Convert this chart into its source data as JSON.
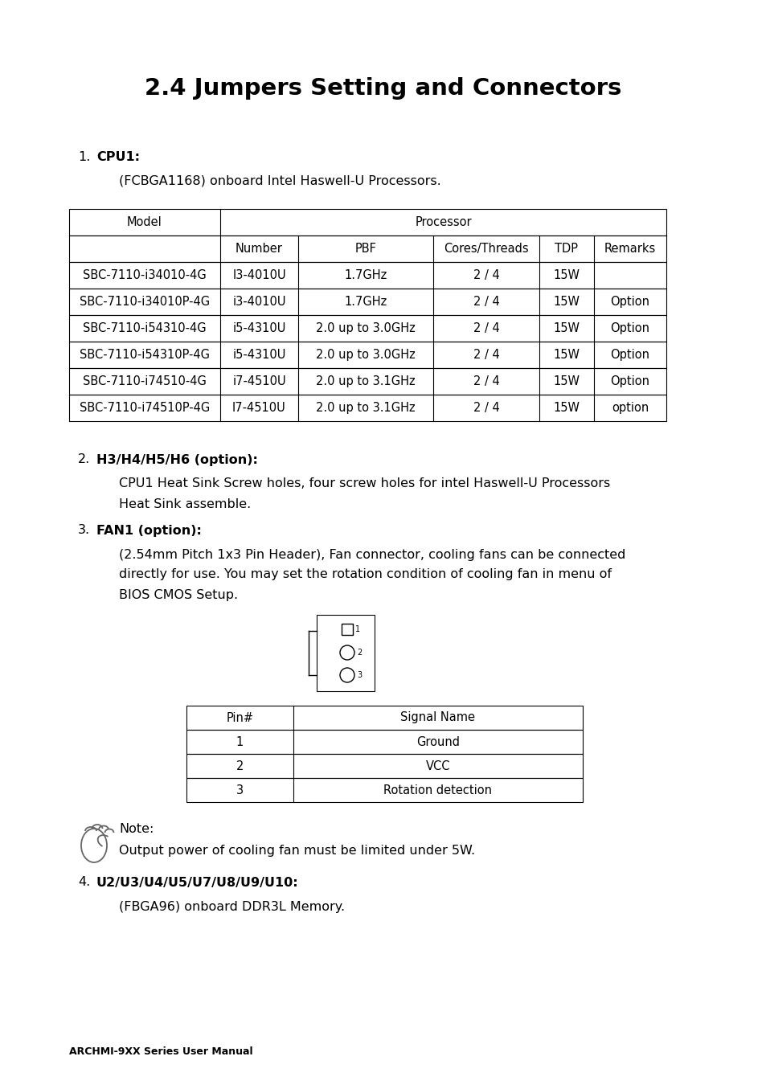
{
  "title": "2.4 Jumpers Setting and Connectors",
  "bg_color": "#ffffff",
  "section1_label": "1.",
  "section1_bold": "CPU1:",
  "section1_text": "(FCBGA1168) onboard Intel Haswell-U Processors.",
  "cpu_table_rows": [
    [
      "SBC-7110-i34010-4G",
      "I3-4010U",
      "1.7GHz",
      "2 / 4",
      "15W",
      ""
    ],
    [
      "SBC-7110-i34010P-4G",
      "i3-4010U",
      "1.7GHz",
      "2 / 4",
      "15W",
      "Option"
    ],
    [
      "SBC-7110-i54310-4G",
      "i5-4310U",
      "2.0 up to 3.0GHz",
      "2 / 4",
      "15W",
      "Option"
    ],
    [
      "SBC-7110-i54310P-4G",
      "i5-4310U",
      "2.0 up to 3.0GHz",
      "2 / 4",
      "15W",
      "Option"
    ],
    [
      "SBC-7110-i74510-4G",
      "i7-4510U",
      "2.0 up to 3.1GHz",
      "2 / 4",
      "15W",
      "Option"
    ],
    [
      "SBC-7110-i74510P-4G",
      "I7-4510U",
      "2.0 up to 3.1GHz",
      "2 / 4",
      "15W",
      "option"
    ]
  ],
  "section2_label": "2.",
  "section2_bold": "H3/H4/H5/H6 (option):",
  "section2_text1": "CPU1 Heat Sink Screw holes, four screw holes for intel Haswell-U Processors",
  "section2_text2": "Heat Sink assemble.",
  "section3_label": "3.",
  "section3_bold": "FAN1 (option):",
  "section3_text1": "(2.54mm Pitch 1x3 Pin Header), Fan connector, cooling fans can be connected",
  "section3_text2": "directly for use. You may set the rotation condition of cooling fan in menu of",
  "section3_text3": "BIOS CMOS Setup.",
  "fan_table_rows": [
    [
      "1",
      "Ground"
    ],
    [
      "2",
      "VCC"
    ],
    [
      "3",
      "Rotation detection"
    ]
  ],
  "note_label": "Note:",
  "note_text": "Output power of cooling fan must be limited under 5W.",
  "section4_label": "4.",
  "section4_bold": "U2/U3/U4/U5/U7/U8/U9/U10:",
  "section4_text": "(FBGA96) onboard DDR3L Memory.",
  "footer": "ARCHMI-9XX Series User Manual"
}
